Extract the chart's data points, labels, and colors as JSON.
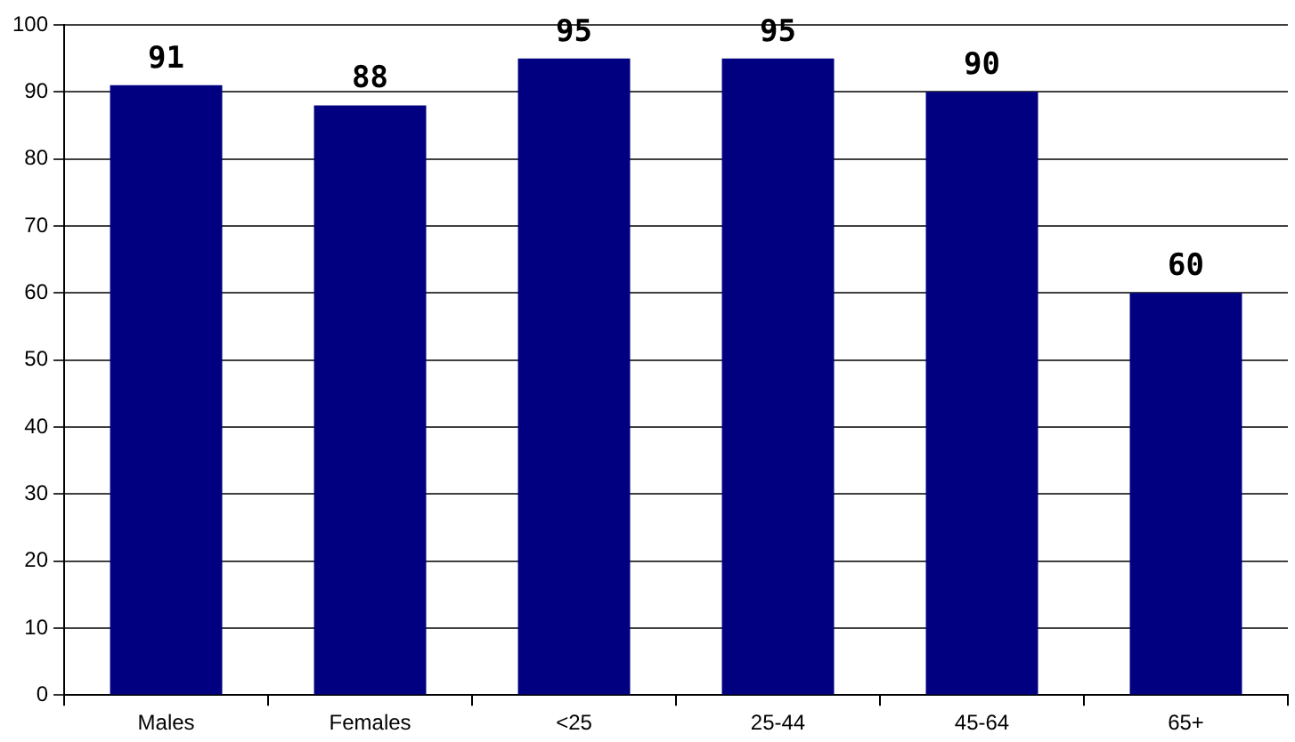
{
  "chart_data": {
    "type": "bar",
    "categories": [
      "Males",
      "Females",
      "<25",
      "25-44",
      "45-64",
      "65+"
    ],
    "values": [
      91,
      88,
      95,
      95,
      90,
      60
    ],
    "color": "#000080",
    "ylim": [
      0,
      100
    ],
    "yticks": [
      0,
      10,
      20,
      30,
      40,
      50,
      60,
      70,
      80,
      90,
      100
    ],
    "grid": "y",
    "data_labels": true
  }
}
